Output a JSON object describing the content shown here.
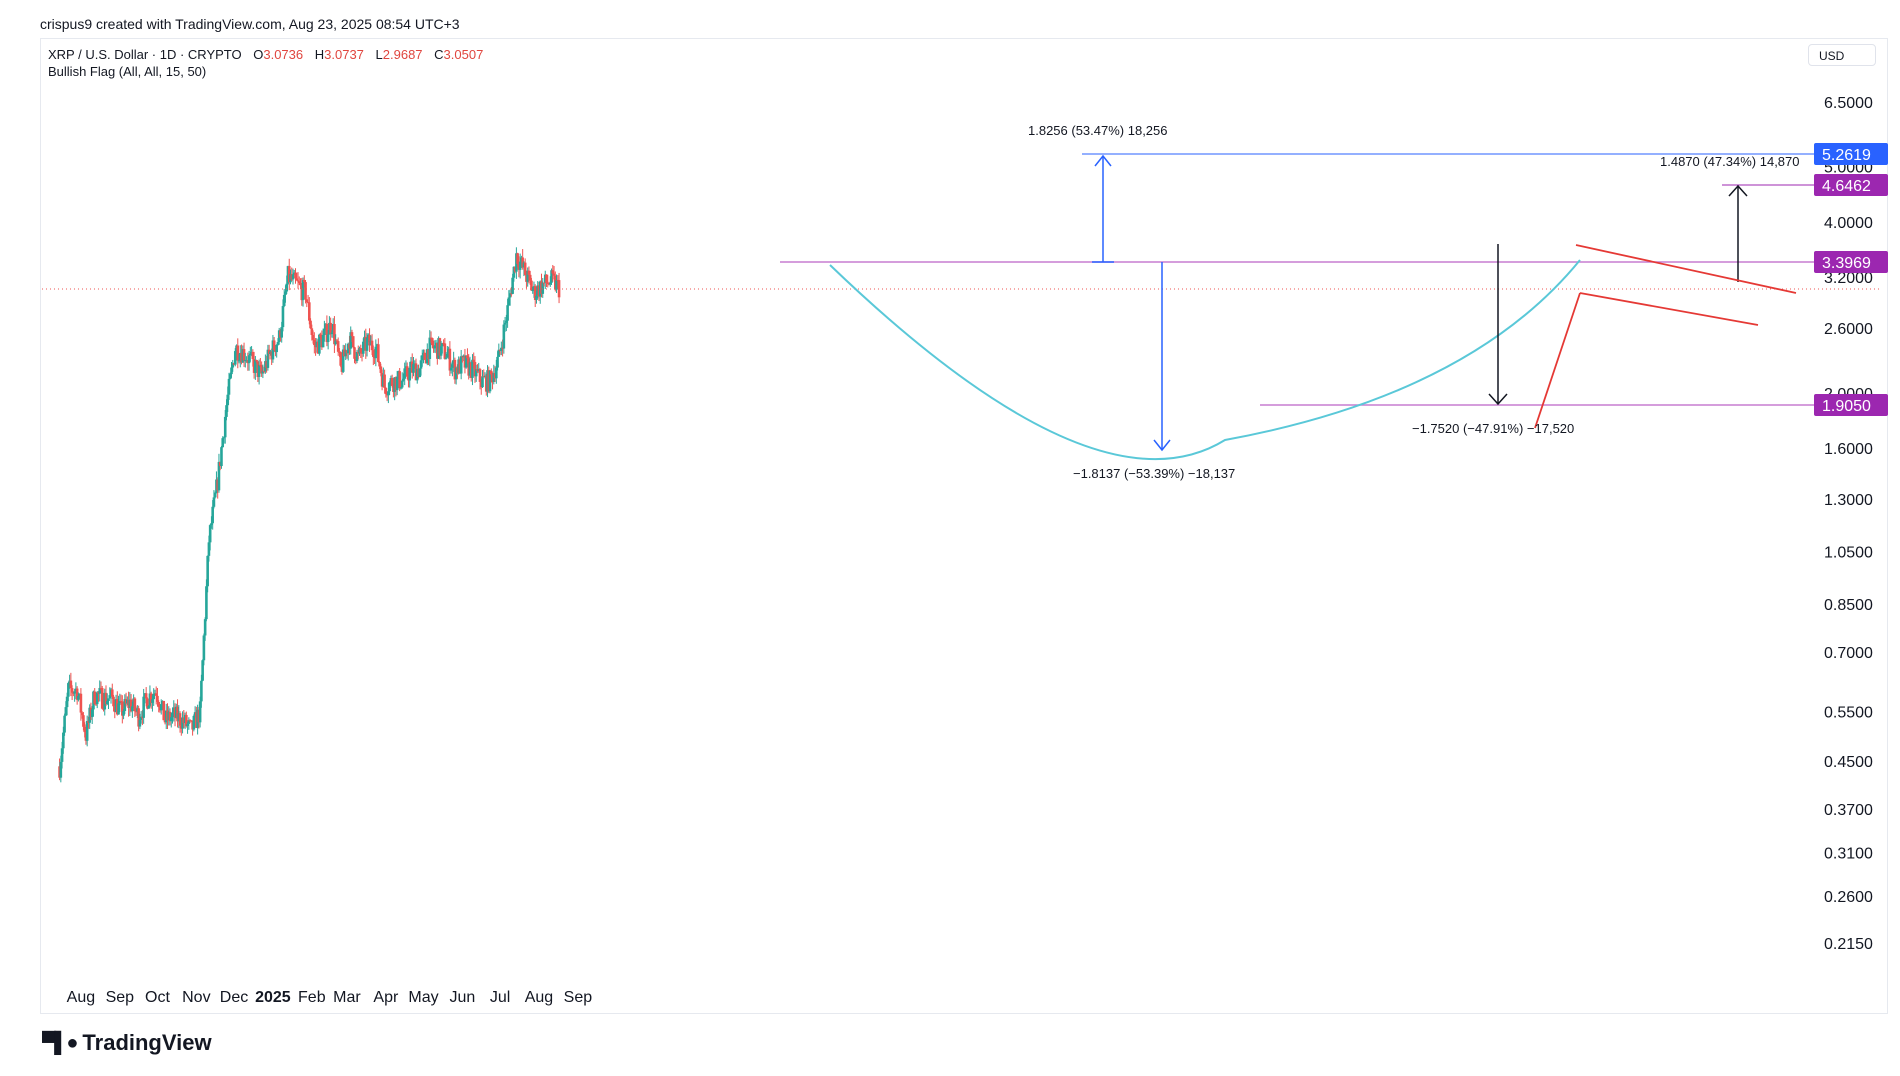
{
  "header": {
    "attribution": "crispus9 created with TradingView.com, Aug 23, 2025 08:54 UTC+3"
  },
  "legend": {
    "symbol": "XRP / U.S. Dollar · 1D · CRYPTO",
    "o_label": "O",
    "o_value": "3.0736",
    "h_label": "H",
    "h_value": "3.0737",
    "l_label": "L",
    "l_value": "2.9687",
    "c_label": "C",
    "c_value": "3.0507",
    "indicator": "Bullish Flag (All, All, 15, 50)"
  },
  "currency": "USD",
  "brand": "TradingView",
  "colors": {
    "up": "#26a69a",
    "down": "#ef5350",
    "purple": "#9c27b0",
    "blue": "#2962ff",
    "cyan": "#5ac8d8",
    "red_line": "#e53935"
  },
  "chart_data": {
    "type": "candlestick",
    "y_scale": "log",
    "ylim": [
      0.19,
      8.0
    ],
    "y_ticks": [
      "6.5000",
      "5.0000",
      "4.0000",
      "3.2000",
      "2.6000",
      "2.0000",
      "1.6000",
      "1.3000",
      "1.0500",
      "0.8500",
      "0.7000",
      "0.5500",
      "0.4500",
      "0.3700",
      "0.3100",
      "0.2600",
      "0.2150"
    ],
    "x_ticks": [
      "Aug",
      "Sep",
      "Oct",
      "Nov",
      "Dec",
      "2025",
      "Feb",
      "Mar",
      "Apr",
      "May",
      "Jun",
      "Jul",
      "Aug",
      "Sep"
    ],
    "price_labels": [
      {
        "value": "5.2619",
        "color": "#2962ff"
      },
      {
        "value": "4.6462",
        "color": "#9c27b0"
      },
      {
        "value": "3.3969",
        "color": "#9c27b0"
      },
      {
        "value": "1.9050",
        "color": "#9c27b0"
      }
    ],
    "annotations": [
      "1.8256 (53.47%) 18,256",
      "1.4870 (47.34%) 14,870",
      "−1.8137 (−53.39%) −18,137",
      "−1.7520 (−47.91%) −17,520"
    ],
    "weekly_closes": [
      {
        "date": "2024-07-15",
        "close": 0.44
      },
      {
        "date": "2024-07-22",
        "close": 0.6
      },
      {
        "date": "2024-07-29",
        "close": 0.6
      },
      {
        "date": "2024-08-05",
        "close": 0.5
      },
      {
        "date": "2024-08-12",
        "close": 0.59
      },
      {
        "date": "2024-08-19",
        "close": 0.58
      },
      {
        "date": "2024-08-26",
        "close": 0.58
      },
      {
        "date": "2024-09-02",
        "close": 0.55
      },
      {
        "date": "2024-09-09",
        "close": 0.57
      },
      {
        "date": "2024-09-16",
        "close": 0.54
      },
      {
        "date": "2024-09-23",
        "close": 0.58
      },
      {
        "date": "2024-09-30",
        "close": 0.6
      },
      {
        "date": "2024-10-07",
        "close": 0.53
      },
      {
        "date": "2024-10-14",
        "close": 0.54
      },
      {
        "date": "2024-10-21",
        "close": 0.53
      },
      {
        "date": "2024-10-28",
        "close": 0.51
      },
      {
        "date": "2024-11-04",
        "close": 0.55
      },
      {
        "date": "2024-11-11",
        "close": 1.1
      },
      {
        "date": "2024-11-18",
        "close": 1.4
      },
      {
        "date": "2024-11-25",
        "close": 1.9
      },
      {
        "date": "2024-12-02",
        "close": 2.4
      },
      {
        "date": "2024-12-09",
        "close": 2.35
      },
      {
        "date": "2024-12-16",
        "close": 2.25
      },
      {
        "date": "2024-12-23",
        "close": 2.15
      },
      {
        "date": "2024-12-30",
        "close": 2.35
      },
      {
        "date": "2025-01-06",
        "close": 2.5
      },
      {
        "date": "2025-01-13",
        "close": 3.2
      },
      {
        "date": "2025-01-20",
        "close": 3.1
      },
      {
        "date": "2025-01-27",
        "close": 3.0
      },
      {
        "date": "2025-02-03",
        "close": 2.4
      },
      {
        "date": "2025-02-10",
        "close": 2.5
      },
      {
        "date": "2025-02-17",
        "close": 2.65
      },
      {
        "date": "2025-02-24",
        "close": 2.2
      },
      {
        "date": "2025-03-03",
        "close": 2.5
      },
      {
        "date": "2025-03-10",
        "close": 2.3
      },
      {
        "date": "2025-03-17",
        "close": 2.45
      },
      {
        "date": "2025-03-24",
        "close": 2.4
      },
      {
        "date": "2025-03-31",
        "close": 2.05
      },
      {
        "date": "2025-04-07",
        "close": 2.1
      },
      {
        "date": "2025-04-14",
        "close": 2.1
      },
      {
        "date": "2025-04-21",
        "close": 2.2
      },
      {
        "date": "2025-04-28",
        "close": 2.2
      },
      {
        "date": "2025-05-05",
        "close": 2.4
      },
      {
        "date": "2025-05-12",
        "close": 2.4
      },
      {
        "date": "2025-05-19",
        "close": 2.35
      },
      {
        "date": "2025-05-26",
        "close": 2.2
      },
      {
        "date": "2025-06-02",
        "close": 2.25
      },
      {
        "date": "2025-06-09",
        "close": 2.2
      },
      {
        "date": "2025-06-16",
        "close": 2.1
      },
      {
        "date": "2025-06-23",
        "close": 2.1
      },
      {
        "date": "2025-06-30",
        "close": 2.3
      },
      {
        "date": "2025-07-07",
        "close": 2.8
      },
      {
        "date": "2025-07-14",
        "close": 3.5
      },
      {
        "date": "2025-07-21",
        "close": 3.25
      },
      {
        "date": "2025-07-28",
        "close": 3.0
      },
      {
        "date": "2025-08-04",
        "close": 3.1
      },
      {
        "date": "2025-08-11",
        "close": 3.15
      },
      {
        "date": "2025-08-18",
        "close": 3.05
      }
    ],
    "grid": false,
    "legend_placement": "top-left"
  }
}
